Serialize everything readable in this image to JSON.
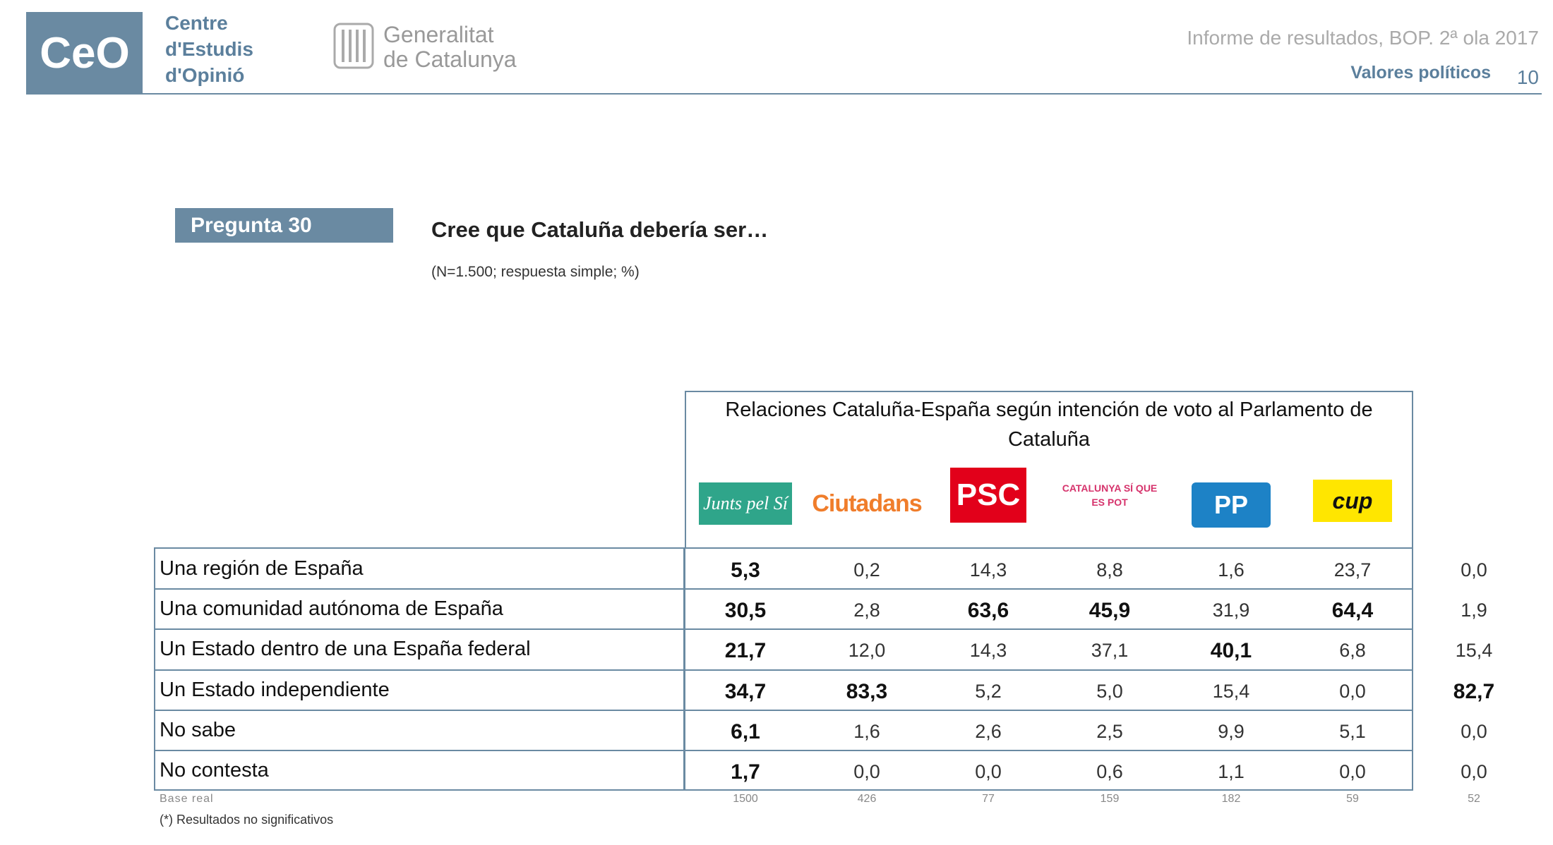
{
  "header": {
    "logo": "CeO",
    "org": [
      "Centre",
      "d'Estudis",
      "d'Opinió"
    ],
    "gov": [
      "Generalitat",
      "de Catalunya"
    ],
    "report": "Informe de resultados, BOP. 2ª ola 2017",
    "section": "Valores políticos",
    "page": "10"
  },
  "question": {
    "label": "Pregunta 30",
    "title": "Cree que Cataluña debería ser…",
    "note": "(N=1.500; respuesta simple; %)"
  },
  "table": {
    "group_title": "Relaciones Cataluña-España según intención de voto al Parlamento de Cataluña",
    "parties": [
      "Junts pel Sí",
      "Ciutadans",
      "PSC",
      "CATALUNYA SÍ QUE ES POT",
      "PP",
      "cup"
    ],
    "rows": [
      [
        "Una región de España",
        "5,3",
        "0,2",
        "14,3",
        "8,8",
        "1,6",
        "23,7",
        "0,0"
      ],
      [
        "Una comunidad autónoma de España",
        "30,5",
        "2,8",
        "63,6",
        "45,9",
        "31,9",
        "64,4",
        "1,9"
      ],
      [
        "Un Estado dentro de una España federal",
        "21,7",
        "12,0",
        "14,3",
        "37,1",
        "40,1",
        "6,8",
        "15,4"
      ],
      [
        "Un Estado independiente",
        "34,7",
        "83,3",
        "5,2",
        "5,0",
        "15,4",
        "0,0",
        "82,7"
      ],
      [
        "No sabe",
        "6,1",
        "1,6",
        "2,6",
        "2,5",
        "9,9",
        "5,1",
        "0,0"
      ],
      [
        "No contesta",
        "1,7",
        "0,0",
        "0,0",
        "0,6",
        "1,1",
        "0,0",
        "0,0"
      ]
    ],
    "bold": [
      [
        1,
        3
      ],
      [
        1,
        4
      ],
      [
        1,
        6
      ],
      [
        2,
        5
      ],
      [
        3,
        2
      ],
      [
        3,
        7
      ]
    ],
    "base": [
      "Base real",
      "1500",
      "426",
      "77",
      "159",
      "182",
      "59",
      "52"
    ],
    "footnote": "(*) Resultados no significativos"
  }
}
